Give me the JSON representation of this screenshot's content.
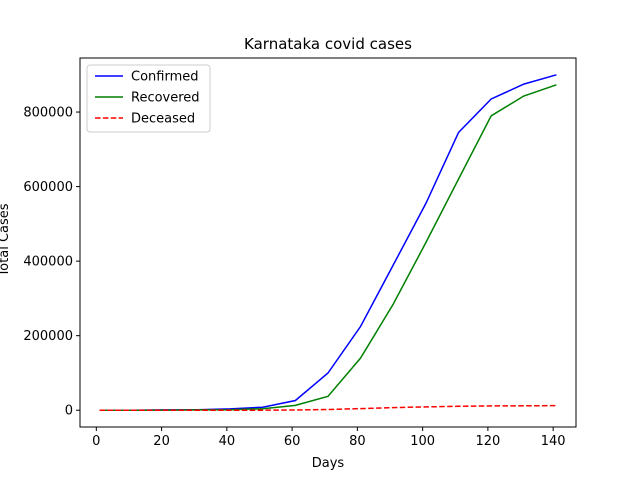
{
  "chart_data": {
    "type": "line",
    "title": "Karnataka covid cases",
    "xlabel": "Days",
    "ylabel": "Total Cases",
    "xlim": [
      -5,
      147
    ],
    "ylim": [
      -45000,
      945000
    ],
    "xticks": [
      0,
      20,
      40,
      60,
      80,
      100,
      120,
      140
    ],
    "yticks": [
      0,
      200000,
      400000,
      600000,
      800000
    ],
    "grid": false,
    "legend_position": "top-left",
    "x": [
      1,
      11,
      21,
      31,
      41,
      51,
      61,
      71,
      81,
      91,
      101,
      111,
      121,
      131,
      141
    ],
    "series": [
      {
        "name": "Confirmed",
        "color": "#0000ff",
        "dash": "solid",
        "values": [
          0,
          200,
          800,
          1500,
          3500,
          8000,
          26000,
          100000,
          225000,
          390000,
          555000,
          745000,
          835000,
          875000,
          900000
        ]
      },
      {
        "name": "Recovered",
        "color": "#008000",
        "dash": "solid",
        "values": [
          0,
          100,
          400,
          800,
          1500,
          4000,
          13000,
          37000,
          140000,
          285000,
          450000,
          620000,
          790000,
          843000,
          873000
        ]
      },
      {
        "name": "Deceased",
        "color": "#ff0000",
        "dash": "dashed",
        "values": [
          0,
          0,
          0,
          50,
          100,
          200,
          500,
          2000,
          4500,
          7000,
          9000,
          10500,
          11500,
          12000,
          12500
        ]
      }
    ]
  }
}
